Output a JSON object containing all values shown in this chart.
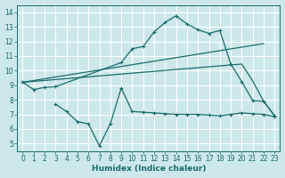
{
  "xlabel": "Humidex (Indice chaleur)",
  "bg_color": "#cce8ea",
  "grid_color": "#ffffff",
  "line_color": "#1a6b6b",
  "xlim": [
    -0.5,
    23.5
  ],
  "ylim": [
    4.5,
    14.5
  ],
  "xticks": [
    0,
    1,
    2,
    3,
    4,
    5,
    6,
    7,
    8,
    9,
    10,
    11,
    12,
    13,
    14,
    15,
    16,
    17,
    18,
    19,
    20,
    21,
    22,
    23
  ],
  "yticks": [
    5,
    6,
    7,
    8,
    9,
    10,
    11,
    12,
    13,
    14
  ],
  "curve1_x": [
    0,
    1,
    2,
    3,
    9,
    10,
    11,
    12,
    13,
    14,
    15,
    16,
    17,
    18,
    19,
    20,
    21,
    22,
    23
  ],
  "curve1_y": [
    9.2,
    8.7,
    8.85,
    8.9,
    10.55,
    11.5,
    11.65,
    12.65,
    13.3,
    13.75,
    13.2,
    12.8,
    12.55,
    12.75,
    10.45,
    9.25,
    7.95,
    7.9,
    6.9
  ],
  "curve2_x": [
    0,
    22
  ],
  "curve2_y": [
    9.2,
    11.85
  ],
  "curve3_x": [
    0,
    20,
    21,
    22,
    23
  ],
  "curve3_y": [
    9.2,
    10.45,
    9.3,
    7.9,
    6.9
  ],
  "curve4_x": [
    3,
    4,
    5,
    6,
    7,
    8,
    9,
    10,
    11,
    12,
    13,
    14,
    15,
    16,
    17,
    18,
    19,
    20,
    21,
    22,
    23
  ],
  "curve4_y": [
    7.7,
    7.2,
    6.5,
    6.35,
    4.85,
    6.35,
    8.8,
    7.2,
    7.15,
    7.1,
    7.05,
    7.0,
    7.0,
    7.0,
    6.95,
    6.9,
    7.0,
    7.1,
    7.05,
    7.0,
    6.85
  ],
  "lw": 0.9,
  "ms": 2.5,
  "tick_fontsize": 5.5,
  "xlabel_fontsize": 6.5
}
